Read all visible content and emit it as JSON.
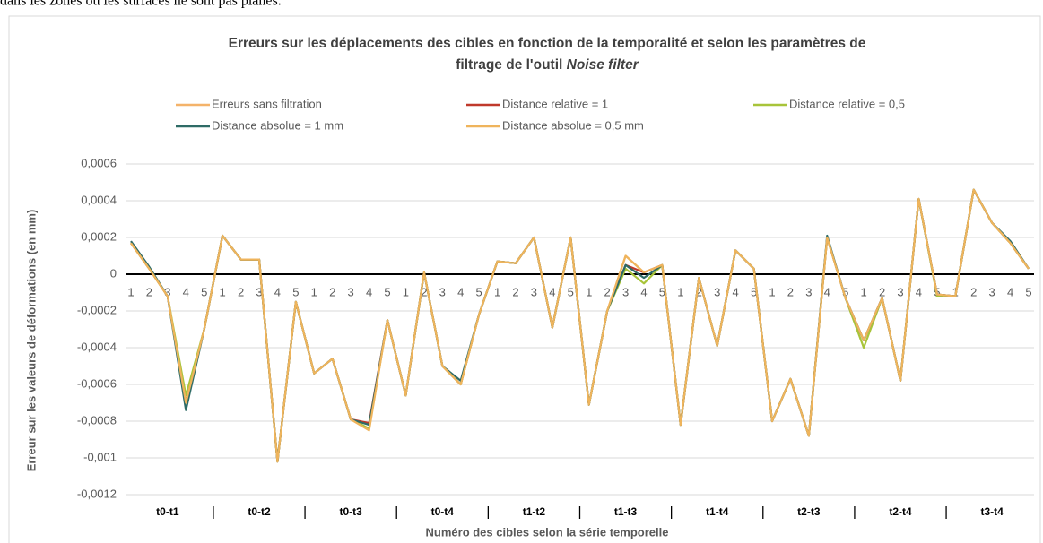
{
  "intro_text": "dans les zones où les surfaces ne sont pas planes.",
  "chart_data": {
    "type": "line",
    "title": [
      "Erreurs sur les déplacements des cibles en fonction de la temporalité et selon les paramètres de",
      "filtrage de l'outil ",
      "Noise filter"
    ],
    "x_label": "Numéro des cibles selon la série temporelle",
    "y_label": "Erreur sur les valeurs de déformations (en mm)",
    "categories": [
      "1",
      "2",
      "3",
      "4",
      "5",
      "1",
      "2",
      "3",
      "4",
      "5",
      "1",
      "2",
      "3",
      "4",
      "5",
      "1",
      "2",
      "3",
      "4",
      "5",
      "1",
      "2",
      "3",
      "4",
      "5",
      "1",
      "2",
      "3",
      "4",
      "5",
      "1",
      "2",
      "3",
      "4",
      "5",
      "1",
      "2",
      "3",
      "4",
      "5",
      "1",
      "2",
      "3",
      "4",
      "5",
      "1",
      "2",
      "3",
      "4",
      "5"
    ],
    "groups": [
      "t0-t1",
      "t0-t2",
      "t0-t3",
      "t0-t4",
      "t1-t2",
      "t1-t3",
      "t1-t4",
      "t2-t3",
      "t2-t4",
      "t3-t4"
    ],
    "ylim": [
      -0.0012,
      0.0006
    ],
    "yticks": [
      {
        "value": 0.0006,
        "label": "0,0006"
      },
      {
        "value": 0.0004,
        "label": "0,0004"
      },
      {
        "value": 0.0002,
        "label": "0,0002"
      },
      0,
      {
        "value": -0.0002,
        "label": "-0,0002"
      },
      {
        "value": -0.0004,
        "label": "-0,0004"
      },
      {
        "value": -0.0006,
        "label": "-0,0006"
      },
      {
        "value": -0.0008,
        "label": "-0,0008"
      },
      {
        "value": -0.001,
        "label": "-0,001"
      },
      {
        "value": -0.0012,
        "label": "-0,0012"
      }
    ],
    "grid": true,
    "series": [
      {
        "name": "Erreurs sans filtration",
        "color": "#f4b36a",
        "values": [
          0.00017,
          3e-05,
          -0.00012,
          -0.0007,
          -0.0003,
          0.00021,
          8e-05,
          8e-05,
          -0.00102,
          -0.00015,
          -0.00054,
          -0.00046,
          -0.00079,
          -0.00084,
          -0.00025,
          -0.00066,
          1e-05,
          -0.0005,
          -0.0006,
          -0.00022,
          7e-05,
          6e-05,
          0.0002,
          -0.00029,
          0.0002,
          -0.00071,
          -0.0002,
          0.0001,
          1e-05,
          5e-05,
          -0.00082,
          -2e-05,
          -0.00039,
          0.00013,
          3e-05,
          -0.0008,
          -0.00057,
          -0.00088,
          0.0002,
          -0.00013,
          -0.00036,
          -0.00013,
          -0.00058,
          0.00041,
          -0.00011,
          -0.00012,
          0.00046,
          0.00028,
          0.00017,
          3e-05
        ]
      },
      {
        "name": "Distance relative = 1",
        "color": "#c0392b",
        "values": [
          0.00017,
          3e-05,
          -0.00012,
          -0.0007,
          -0.0003,
          0.00021,
          8e-05,
          8e-05,
          -0.00102,
          -0.00015,
          -0.00054,
          -0.00046,
          -0.00079,
          -0.00081,
          -0.00025,
          -0.00066,
          1e-05,
          -0.0005,
          -0.0006,
          -0.00022,
          7e-05,
          6e-05,
          0.0002,
          -0.00029,
          0.0002,
          -0.00071,
          -0.0002,
          5e-05,
          1e-05,
          5e-05,
          -0.00082,
          -2e-05,
          -0.00039,
          0.00013,
          3e-05,
          -0.0008,
          -0.00057,
          -0.00088,
          0.0002,
          -0.00013,
          -0.00036,
          -0.00013,
          -0.00058,
          0.00041,
          -0.00011,
          -0.00012,
          0.00046,
          0.00028,
          0.00017,
          3e-05
        ]
      },
      {
        "name": "Distance relative = 0,5",
        "color": "#a8c43a",
        "values": [
          0.00017,
          3e-05,
          -0.00012,
          -0.00066,
          -0.0003,
          0.00021,
          8e-05,
          8e-05,
          -0.00102,
          -0.00015,
          -0.00054,
          -0.00046,
          -0.00079,
          -0.00084,
          -0.00025,
          -0.00066,
          1e-05,
          -0.0005,
          -0.0006,
          -0.00022,
          7e-05,
          6e-05,
          0.0002,
          -0.00029,
          0.0002,
          -0.00071,
          -0.0002,
          3e-05,
          -5e-05,
          5e-05,
          -0.00082,
          -2e-05,
          -0.00039,
          0.00013,
          3e-05,
          -0.0008,
          -0.00057,
          -0.00088,
          0.0002,
          -0.00013,
          -0.0004,
          -0.00013,
          -0.00058,
          0.00041,
          -0.00012,
          -0.00012,
          0.00046,
          0.00028,
          0.00017,
          3e-05
        ]
      },
      {
        "name": "Distance absolue = 1 mm",
        "color": "#2e6b66",
        "values": [
          0.00018,
          4e-05,
          -0.00012,
          -0.00074,
          -0.0003,
          0.00021,
          8e-05,
          8e-05,
          -0.00102,
          -0.00015,
          -0.00054,
          -0.00046,
          -0.00079,
          -0.00082,
          -0.00025,
          -0.00066,
          1e-05,
          -0.0005,
          -0.00058,
          -0.00022,
          7e-05,
          6e-05,
          0.0002,
          -0.00029,
          0.0002,
          -0.00071,
          -0.0002,
          5e-05,
          -2e-05,
          5e-05,
          -0.00082,
          -2e-05,
          -0.00039,
          0.00013,
          3e-05,
          -0.0008,
          -0.00057,
          -0.00088,
          0.00021,
          -0.00013,
          -0.00036,
          -0.00013,
          -0.00058,
          0.00041,
          -0.00011,
          -0.00012,
          0.00046,
          0.00028,
          0.00018,
          3e-05
        ]
      },
      {
        "name": "Distance absolue = 0,5 mm",
        "color": "#efb45c",
        "values": [
          0.00017,
          3e-05,
          -0.00012,
          -0.0007,
          -0.0003,
          0.00021,
          8e-05,
          8e-05,
          -0.00102,
          -0.00015,
          -0.00054,
          -0.00046,
          -0.00079,
          -0.00085,
          -0.00025,
          -0.00066,
          1e-05,
          -0.0005,
          -0.0006,
          -0.00022,
          7e-05,
          6e-05,
          0.0002,
          -0.00029,
          0.0002,
          -0.00071,
          -0.0002,
          0.0001,
          1e-05,
          5e-05,
          -0.00082,
          -2e-05,
          -0.00039,
          0.00013,
          3e-05,
          -0.0008,
          -0.00057,
          -0.00088,
          0.0002,
          -0.00013,
          -0.00036,
          -0.00013,
          -0.00058,
          0.00041,
          -0.00011,
          -0.00012,
          0.00046,
          0.00028,
          0.00017,
          3e-05
        ]
      }
    ]
  }
}
